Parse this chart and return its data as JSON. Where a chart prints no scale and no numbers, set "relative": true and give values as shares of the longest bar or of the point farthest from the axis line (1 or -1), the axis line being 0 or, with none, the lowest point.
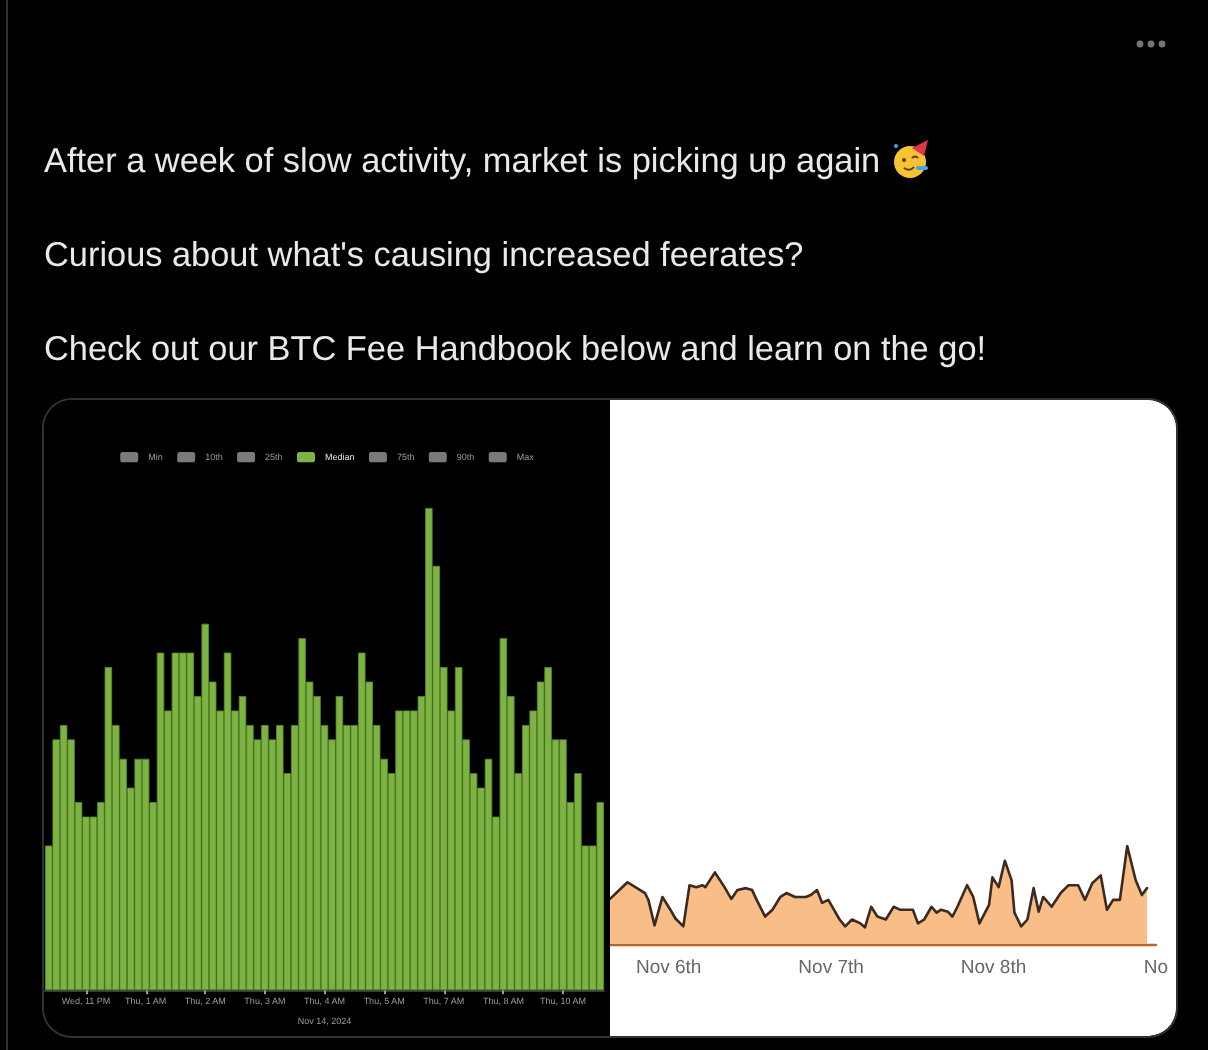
{
  "chart_data": [
    {
      "type": "other",
      "annotations": [
        "After a week of slow activity, market is picking up again",
        "Curious about what's causing increased feerates?",
        "Check out our BTC Fee Handbook below and learn on the go!"
      ]
    },
    {
      "type": "bar",
      "relative": true,
      "xlabel": "Nov 14, 2024",
      "legend": "top",
      "categories": [
        null,
        null,
        null,
        null,
        null,
        "Wed, 11 PM",
        null,
        null,
        null,
        null,
        null,
        null,
        null,
        "Thu, 1 AM",
        null,
        null,
        null,
        null,
        null,
        null,
        null,
        "Thu, 2 AM",
        null,
        null,
        null,
        null,
        null,
        null,
        null,
        "Thu, 3 AM",
        null,
        null,
        null,
        null,
        null,
        null,
        null,
        "Thu, 4 AM",
        null,
        null,
        null,
        null,
        null,
        null,
        null,
        "Thu, 5 AM",
        null,
        null,
        null,
        null,
        null,
        null,
        null,
        "Thu, 7 AM",
        null,
        null,
        null,
        null,
        null,
        null,
        null,
        "Thu, 8 AM",
        null,
        null,
        null,
        null,
        null,
        null,
        null,
        "Thu, 10 AM",
        null,
        null,
        null,
        null,
        null
      ],
      "series": [
        {
          "name": "Min",
          "color": "#7a7a7a",
          "values": [
            null,
            null,
            null,
            null,
            null,
            null,
            null,
            null,
            null,
            null,
            null,
            null,
            null,
            null,
            null,
            null,
            null,
            null,
            null,
            null,
            null,
            null,
            null,
            null,
            null,
            null,
            null,
            null,
            null,
            null,
            null,
            null,
            null,
            null,
            null,
            null,
            null,
            null,
            null,
            null,
            null,
            null,
            null,
            null,
            null,
            null,
            null,
            null,
            null,
            null,
            null,
            null,
            null,
            null,
            null,
            null,
            null,
            null,
            null,
            null,
            null,
            null,
            null,
            null,
            null,
            null,
            null,
            null,
            null,
            null,
            null,
            null,
            null,
            null,
            null
          ]
        },
        {
          "name": "10th",
          "color": "#7a7a7a",
          "values": [
            null,
            null,
            null,
            null,
            null,
            null,
            null,
            null,
            null,
            null,
            null,
            null,
            null,
            null,
            null,
            null,
            null,
            null,
            null,
            null,
            null,
            null,
            null,
            null,
            null,
            null,
            null,
            null,
            null,
            null,
            null,
            null,
            null,
            null,
            null,
            null,
            null,
            null,
            null,
            null,
            null,
            null,
            null,
            null,
            null,
            null,
            null,
            null,
            null,
            null,
            null,
            null,
            null,
            null,
            null,
            null,
            null,
            null,
            null,
            null,
            null,
            null,
            null,
            null,
            null,
            null,
            null,
            null,
            null,
            null,
            null,
            null,
            null,
            null,
            null
          ]
        },
        {
          "name": "25th",
          "color": "#7a7a7a",
          "values": [
            null,
            null,
            null,
            null,
            null,
            null,
            null,
            null,
            null,
            null,
            null,
            null,
            null,
            null,
            null,
            null,
            null,
            null,
            null,
            null,
            null,
            null,
            null,
            null,
            null,
            null,
            null,
            null,
            null,
            null,
            null,
            null,
            null,
            null,
            null,
            null,
            null,
            null,
            null,
            null,
            null,
            null,
            null,
            null,
            null,
            null,
            null,
            null,
            null,
            null,
            null,
            null,
            null,
            null,
            null,
            null,
            null,
            null,
            null,
            null,
            null,
            null,
            null,
            null,
            null,
            null,
            null,
            null,
            null,
            null,
            null,
            null,
            null,
            null,
            null
          ]
        },
        {
          "name": "Median",
          "color": "#7cb342",
          "values": [
            0.3,
            0.52,
            0.55,
            0.52,
            0.39,
            0.36,
            0.36,
            0.39,
            0.67,
            0.55,
            0.48,
            0.42,
            0.48,
            0.48,
            0.39,
            0.7,
            0.58,
            0.7,
            0.7,
            0.7,
            0.61,
            0.76,
            0.64,
            0.58,
            0.7,
            0.58,
            0.61,
            0.55,
            0.52,
            0.55,
            0.52,
            0.55,
            0.45,
            0.55,
            0.73,
            0.64,
            0.61,
            0.55,
            0.52,
            0.61,
            0.55,
            0.55,
            0.7,
            0.64,
            0.55,
            0.48,
            0.45,
            0.58,
            0.58,
            0.58,
            0.61,
            1,
            0.88,
            0.67,
            0.58,
            0.67,
            0.52,
            0.45,
            0.42,
            0.48,
            0.36,
            0.73,
            0.61,
            0.45,
            0.55,
            0.58,
            0.64,
            0.67,
            0.52,
            0.52,
            0.39,
            0.45,
            0.3,
            0.3,
            0.39
          ]
        },
        {
          "name": "75th",
          "color": "#7a7a7a",
          "values": [
            null,
            null,
            null,
            null,
            null,
            null,
            null,
            null,
            null,
            null,
            null,
            null,
            null,
            null,
            null,
            null,
            null,
            null,
            null,
            null,
            null,
            null,
            null,
            null,
            null,
            null,
            null,
            null,
            null,
            null,
            null,
            null,
            null,
            null,
            null,
            null,
            null,
            null,
            null,
            null,
            null,
            null,
            null,
            null,
            null,
            null,
            null,
            null,
            null,
            null,
            null,
            null,
            null,
            null,
            null,
            null,
            null,
            null,
            null,
            null,
            null,
            null,
            null,
            null,
            null,
            null,
            null,
            null,
            null,
            null,
            null,
            null,
            null,
            null,
            null
          ]
        },
        {
          "name": "90th",
          "color": "#7a7a7a",
          "values": [
            null,
            null,
            null,
            null,
            null,
            null,
            null,
            null,
            null,
            null,
            null,
            null,
            null,
            null,
            null,
            null,
            null,
            null,
            null,
            null,
            null,
            null,
            null,
            null,
            null,
            null,
            null,
            null,
            null,
            null,
            null,
            null,
            null,
            null,
            null,
            null,
            null,
            null,
            null,
            null,
            null,
            null,
            null,
            null,
            null,
            null,
            null,
            null,
            null,
            null,
            null,
            null,
            null,
            null,
            null,
            null,
            null,
            null,
            null,
            null,
            null,
            null,
            null,
            null,
            null,
            null,
            null,
            null,
            null,
            null,
            null,
            null,
            null,
            null,
            null
          ]
        },
        {
          "name": "Max",
          "color": "#7a7a7a",
          "values": [
            null,
            null,
            null,
            null,
            null,
            null,
            null,
            null,
            null,
            null,
            null,
            null,
            null,
            null,
            null,
            null,
            null,
            null,
            null,
            null,
            null,
            null,
            null,
            null,
            null,
            null,
            null,
            null,
            null,
            null,
            null,
            null,
            null,
            null,
            null,
            null,
            null,
            null,
            null,
            null,
            null,
            null,
            null,
            null,
            null,
            null,
            null,
            null,
            null,
            null,
            null,
            null,
            null,
            null,
            null,
            null,
            null,
            null,
            null,
            null,
            null,
            null,
            null,
            null,
            null,
            null,
            null,
            null,
            null,
            null,
            null,
            null,
            null,
            null,
            null
          ]
        }
      ]
    },
    {
      "type": "area",
      "relative": true,
      "color": "#f9bd87",
      "marker": "none",
      "xlim": [
        "--11-05T15:20",
        "--11-09T00:00"
      ],
      "xticks": [
        {
          "value": "--11-06",
          "label": "Nov 6th"
        },
        {
          "value": "--11-07",
          "label": "Nov 7th"
        },
        {
          "value": "--11-08",
          "label": "Nov 8th"
        },
        {
          "value": "--11-09",
          "label": "No"
        }
      ],
      "x": [
        "--11-05T15:20",
        "--11-05T16:15",
        "--11-05T17:55",
        "--11-05T19:05",
        "--11-05T20:30",
        "--11-05T21:00",
        "--11-05T21:55",
        "--11-05T23:05",
        "--11-06T00:15",
        "--11-06T01:00",
        "--11-06T02:10",
        "--11-06T03:05",
        "--11-06T04:05",
        "--11-06T05:00",
        "--11-06T05:25",
        "--11-06T06:50",
        "--11-06T08:15",
        "--11-06T09:15",
        "--11-06T10:10",
        "--11-06T11:25",
        "--11-06T12:20",
        "--11-06T13:00",
        "--11-06T14:15",
        "--11-06T15:20",
        "--11-06T16:30",
        "--11-06T17:25",
        "--11-06T18:40",
        "--11-06T20:15",
        "--11-06T21:00",
        "--11-06T21:55",
        "--11-06T22:40",
        "--11-06T23:35",
        "--11-07T00:25",
        "--11-07T01:15",
        "--11-07T02:05",
        "--11-07T03:05",
        "--11-07T04:20",
        "--11-07T05:00",
        "--11-07T05:55",
        "--11-07T06:50",
        "--11-07T08:05",
        "--11-07T09:15",
        "--11-07T10:10",
        "--11-07T12:05",
        "--11-07T12:50",
        "--11-07T13:45",
        "--11-07T14:50",
        "--11-07T15:35",
        "--11-07T16:15",
        "--11-07T17:15",
        "--11-07T17:55",
        "--11-07T18:40",
        "--11-07T20:05",
        "--11-07T21:00",
        "--11-07T21:55",
        "--11-07T23:20",
        "--11-07T23:50",
        "--11-08T00:45",
        "--11-08T01:40",
        "--11-08T02:40",
        "--11-08T03:05",
        "--11-08T04:05",
        "--11-08T05:00",
        "--11-08T05:55",
        "--11-08T06:40",
        "--11-08T07:20",
        "--11-08T08:35",
        "--11-08T09:55",
        "--11-08T11:05",
        "--11-08T12:30",
        "--11-08T13:30",
        "--11-08T14:35",
        "--11-08T15:50",
        "--11-08T16:45",
        "--11-08T17:40",
        "--11-08T18:40",
        "--11-08T19:45",
        "--11-08T21:00",
        "--11-08T21:55",
        "--11-08T22:40"
      ],
      "values": [
        0.46,
        0.52,
        0.63,
        0.58,
        0.52,
        0.45,
        0.19,
        0.48,
        0.35,
        0.26,
        0.18,
        0.6,
        0.58,
        0.6,
        0.58,
        0.73,
        0.58,
        0.46,
        0.55,
        0.57,
        0.55,
        0.45,
        0.28,
        0.35,
        0.48,
        0.52,
        0.48,
        0.48,
        0.5,
        0.55,
        0.42,
        0.45,
        0.35,
        0.25,
        0.18,
        0.25,
        0.21,
        0.17,
        0.38,
        0.28,
        0.25,
        0.38,
        0.35,
        0.35,
        0.21,
        0.25,
        0.38,
        0.32,
        0.35,
        0.33,
        0.28,
        0.38,
        0.6,
        0.48,
        0.21,
        0.4,
        0.68,
        0.58,
        0.85,
        0.65,
        0.32,
        0.18,
        0.25,
        0.57,
        0.33,
        0.48,
        0.38,
        0.52,
        0.6,
        0.6,
        0.45,
        0.62,
        0.7,
        0.35,
        0.45,
        0.45,
        1,
        0.65,
        0.5,
        0.57
      ]
    }
  ]
}
